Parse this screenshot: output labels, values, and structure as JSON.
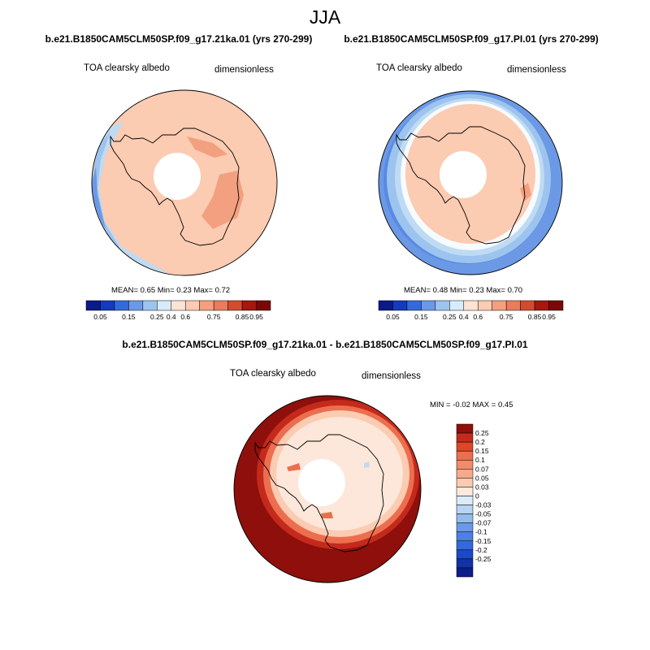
{
  "title": "JJA",
  "colors": {
    "land": "#FDE7DA",
    "lightPeach": "#FBCBB2",
    "salmon": "#F2A07F",
    "darkSalmon": "#E97B5E",
    "paleWhite": "#F7FBFF",
    "lightBlue": "#BFDBF3",
    "midBlue": "#9DC4EE",
    "blue": "#6C99E6",
    "brightBlue": "#3F78E2",
    "darkRed": "#8E0F0B",
    "red": "#C32A1C",
    "orangeRed": "#EC6E4E",
    "outline": "#000000"
  },
  "chart_data": [
    {
      "type": "heatmap",
      "name": "panel-1",
      "title": "b.e21.B1850CAM5CLM50SP.f09_g17.21ka.01 (yrs 270-299)",
      "left_label": "TOA clearsky albedo",
      "right_label": "dimensionless",
      "projection": "south polar stereographic",
      "stats": {
        "mean_label": "MEAN=",
        "mean": "0.65",
        "min_label": "Min=",
        "min": "0.23",
        "max_label": "Max=",
        "max": "0.72"
      },
      "colorbar": {
        "orientation": "horizontal",
        "colors": [
          "#0A1A88",
          "#1638C2",
          "#3469DE",
          "#6C99E6",
          "#9DC4EE",
          "#D8EBFA",
          "#FDE3D3",
          "#FBCBB2",
          "#F2A07F",
          "#E97B5E",
          "#D54A2F",
          "#A8160F",
          "#7A0808"
        ],
        "labels": [
          "0.05",
          "0.15",
          "0.25",
          "0.4",
          "0.6",
          "0.75",
          "0.85",
          "0.95"
        ]
      }
    },
    {
      "type": "heatmap",
      "name": "panel-2",
      "title": "b.e21.B1850CAM5CLM50SP.f09_g17.PI.01 (yrs 270-299)",
      "left_label": "TOA clearsky albedo",
      "right_label": "dimensionless",
      "projection": "south polar stereographic",
      "stats": {
        "mean_label": "MEAN=",
        "mean": "0.48",
        "min_label": "Min=",
        "min": "0.23",
        "max_label": "Max=",
        "max": "0.70"
      },
      "colorbar": {
        "orientation": "horizontal",
        "colors": [
          "#0A1A88",
          "#1638C2",
          "#3469DE",
          "#6C99E6",
          "#9DC4EE",
          "#D8EBFA",
          "#FDE3D3",
          "#FBCBB2",
          "#F2A07F",
          "#E97B5E",
          "#D54A2F",
          "#A8160F",
          "#7A0808"
        ],
        "labels": [
          "0.05",
          "0.15",
          "0.25",
          "0.4",
          "0.6",
          "0.75",
          "0.85",
          "0.95"
        ]
      }
    },
    {
      "type": "heatmap",
      "name": "panel-diff",
      "title": "b.e21.B1850CAM5CLM50SP.f09_g17.21ka.01 - b.e21.B1850CAM5CLM50SP.f09_g17.PI.01",
      "left_label": "TOA clearsky albedo",
      "right_label": "dimensionless",
      "projection": "south polar stereographic",
      "stats": {
        "min_label": "MIN =",
        "min": "-0.02",
        "max_label": "MAX =",
        "max": "0.45"
      },
      "colorbar": {
        "orientation": "vertical",
        "colors": [
          "#8E0F0B",
          "#C32A1C",
          "#DD4626",
          "#EC6E4E",
          "#F28B69",
          "#F7A98B",
          "#FBCAB3",
          "#FDE9DE",
          "#DCEBF8",
          "#B8D5F2",
          "#94BCEB",
          "#6C99E6",
          "#4C80E4",
          "#3369DE",
          "#1C49C7",
          "#1233A6",
          "#0A1F88"
        ],
        "labels": [
          "0.25",
          "0.2",
          "0.15",
          "0.1",
          "0.07",
          "0.05",
          "0.03",
          "0",
          "-0.03",
          "-0.05",
          "-0.07",
          "-0.1",
          "-0.15",
          "-0.2",
          "-0.25"
        ]
      }
    }
  ]
}
